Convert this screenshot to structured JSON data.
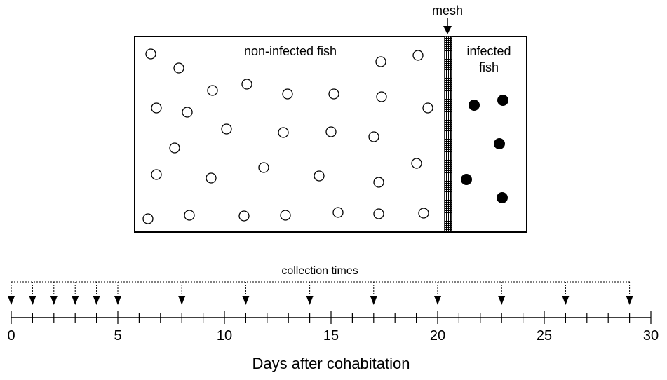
{
  "tank": {
    "mesh_label": "mesh",
    "left_label": "non-infected fish",
    "right_label_line1": "infected",
    "right_label_line2": "fish",
    "non_infected_count": 30,
    "infected_count": 5
  },
  "timeline": {
    "collection_label": "collection times",
    "axis_label": "Days after cohabitation",
    "tick_labels": [
      "0",
      "5",
      "10",
      "15",
      "20",
      "25",
      "30"
    ],
    "axis_min": 0,
    "axis_max": 30,
    "collection_days": [
      0,
      1,
      2,
      3,
      4,
      5,
      8,
      11,
      14,
      17,
      20,
      23,
      26,
      29
    ]
  }
}
